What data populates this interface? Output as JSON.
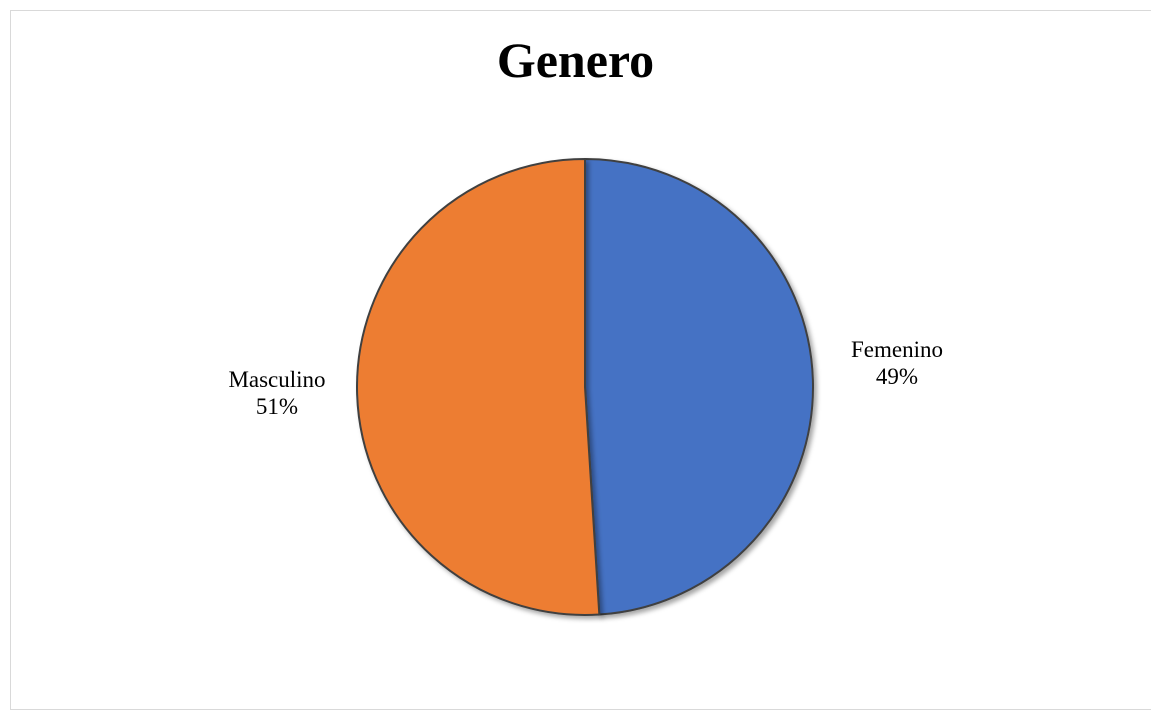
{
  "chart_data": {
    "type": "pie",
    "title": "Genero",
    "slices": [
      {
        "name": "Femenino",
        "value": 49,
        "label": "49%",
        "color": "#4472C4"
      },
      {
        "name": "Masculino",
        "value": 51,
        "label": "51%",
        "color": "#ED7D31"
      }
    ],
    "start": "12 o'clock",
    "direction": "clockwise",
    "legend": "none",
    "data_labels": "outside"
  }
}
